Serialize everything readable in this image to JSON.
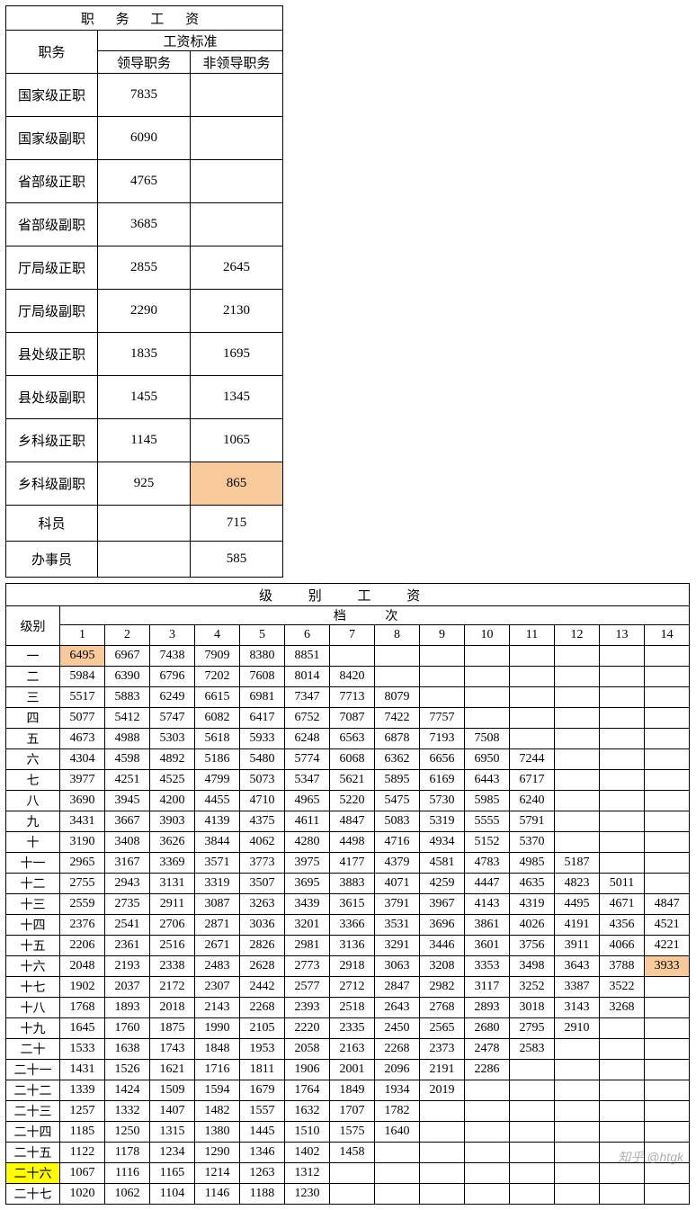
{
  "colors": {
    "highlight_orange": "#f7c99b",
    "highlight_yellow": "#ffff00",
    "border": "#000000",
    "background": "#ffffff"
  },
  "t1": {
    "title": "职 务 工 资",
    "col_position": "职务",
    "col_standard": "工资标准",
    "col_leader": "领导职务",
    "col_nonleader": "非领导职务",
    "rows": [
      {
        "pos": "国家级正职",
        "a": "7835",
        "b": ""
      },
      {
        "pos": "国家级副职",
        "a": "6090",
        "b": ""
      },
      {
        "pos": "省部级正职",
        "a": "4765",
        "b": ""
      },
      {
        "pos": "省部级副职",
        "a": "3685",
        "b": ""
      },
      {
        "pos": "厅局级正职",
        "a": "2855",
        "b": "2645"
      },
      {
        "pos": "厅局级副职",
        "a": "2290",
        "b": "2130"
      },
      {
        "pos": "县处级正职",
        "a": "1835",
        "b": "1695"
      },
      {
        "pos": "县处级副职",
        "a": "1455",
        "b": "1345"
      },
      {
        "pos": "乡科级正职",
        "a": "1145",
        "b": "1065"
      },
      {
        "pos": "乡科级副职",
        "a": "925",
        "b": "865",
        "hl_b": true
      },
      {
        "pos": "科员",
        "a": "",
        "b": "715",
        "short": true
      },
      {
        "pos": "办事员",
        "a": "",
        "b": "585",
        "short": true
      }
    ]
  },
  "t2": {
    "title": "级 别 工 资",
    "col_level": "级别",
    "col_steps": "档    次",
    "step_labels": [
      "1",
      "2",
      "3",
      "4",
      "5",
      "6",
      "7",
      "8",
      "9",
      "10",
      "11",
      "12",
      "13",
      "14"
    ],
    "highlights": {
      "row0_col0": true,
      "row15_col13": true,
      "row25_level": true
    },
    "rows": [
      {
        "lvl": "一",
        "v": [
          "6495",
          "6967",
          "7438",
          "7909",
          "8380",
          "8851",
          "",
          "",
          "",
          "",
          "",
          "",
          "",
          ""
        ]
      },
      {
        "lvl": "二",
        "v": [
          "5984",
          "6390",
          "6796",
          "7202",
          "7608",
          "8014",
          "8420",
          "",
          "",
          "",
          "",
          "",
          "",
          ""
        ]
      },
      {
        "lvl": "三",
        "v": [
          "5517",
          "5883",
          "6249",
          "6615",
          "6981",
          "7347",
          "7713",
          "8079",
          "",
          "",
          "",
          "",
          "",
          ""
        ]
      },
      {
        "lvl": "四",
        "v": [
          "5077",
          "5412",
          "5747",
          "6082",
          "6417",
          "6752",
          "7087",
          "7422",
          "7757",
          "",
          "",
          "",
          "",
          ""
        ]
      },
      {
        "lvl": "五",
        "v": [
          "4673",
          "4988",
          "5303",
          "5618",
          "5933",
          "6248",
          "6563",
          "6878",
          "7193",
          "7508",
          "",
          "",
          "",
          ""
        ]
      },
      {
        "lvl": "六",
        "v": [
          "4304",
          "4598",
          "4892",
          "5186",
          "5480",
          "5774",
          "6068",
          "6362",
          "6656",
          "6950",
          "7244",
          "",
          "",
          ""
        ]
      },
      {
        "lvl": "七",
        "v": [
          "3977",
          "4251",
          "4525",
          "4799",
          "5073",
          "5347",
          "5621",
          "5895",
          "6169",
          "6443",
          "6717",
          "",
          "",
          ""
        ]
      },
      {
        "lvl": "八",
        "v": [
          "3690",
          "3945",
          "4200",
          "4455",
          "4710",
          "4965",
          "5220",
          "5475",
          "5730",
          "5985",
          "6240",
          "",
          "",
          ""
        ]
      },
      {
        "lvl": "九",
        "v": [
          "3431",
          "3667",
          "3903",
          "4139",
          "4375",
          "4611",
          "4847",
          "5083",
          "5319",
          "5555",
          "5791",
          "",
          "",
          ""
        ]
      },
      {
        "lvl": "十",
        "v": [
          "3190",
          "3408",
          "3626",
          "3844",
          "4062",
          "4280",
          "4498",
          "4716",
          "4934",
          "5152",
          "5370",
          "",
          "",
          ""
        ]
      },
      {
        "lvl": "十一",
        "v": [
          "2965",
          "3167",
          "3369",
          "3571",
          "3773",
          "3975",
          "4177",
          "4379",
          "4581",
          "4783",
          "4985",
          "5187",
          "",
          ""
        ]
      },
      {
        "lvl": "十二",
        "v": [
          "2755",
          "2943",
          "3131",
          "3319",
          "3507",
          "3695",
          "3883",
          "4071",
          "4259",
          "4447",
          "4635",
          "4823",
          "5011",
          ""
        ]
      },
      {
        "lvl": "十三",
        "v": [
          "2559",
          "2735",
          "2911",
          "3087",
          "3263",
          "3439",
          "3615",
          "3791",
          "3967",
          "4143",
          "4319",
          "4495",
          "4671",
          "4847"
        ]
      },
      {
        "lvl": "十四",
        "v": [
          "2376",
          "2541",
          "2706",
          "2871",
          "3036",
          "3201",
          "3366",
          "3531",
          "3696",
          "3861",
          "4026",
          "4191",
          "4356",
          "4521"
        ]
      },
      {
        "lvl": "十五",
        "v": [
          "2206",
          "2361",
          "2516",
          "2671",
          "2826",
          "2981",
          "3136",
          "3291",
          "3446",
          "3601",
          "3756",
          "3911",
          "4066",
          "4221"
        ]
      },
      {
        "lvl": "十六",
        "v": [
          "2048",
          "2193",
          "2338",
          "2483",
          "2628",
          "2773",
          "2918",
          "3063",
          "3208",
          "3353",
          "3498",
          "3643",
          "3788",
          "3933"
        ]
      },
      {
        "lvl": "十七",
        "v": [
          "1902",
          "2037",
          "2172",
          "2307",
          "2442",
          "2577",
          "2712",
          "2847",
          "2982",
          "3117",
          "3252",
          "3387",
          "3522",
          ""
        ]
      },
      {
        "lvl": "十八",
        "v": [
          "1768",
          "1893",
          "2018",
          "2143",
          "2268",
          "2393",
          "2518",
          "2643",
          "2768",
          "2893",
          "3018",
          "3143",
          "3268",
          ""
        ]
      },
      {
        "lvl": "十九",
        "v": [
          "1645",
          "1760",
          "1875",
          "1990",
          "2105",
          "2220",
          "2335",
          "2450",
          "2565",
          "2680",
          "2795",
          "2910",
          "",
          ""
        ]
      },
      {
        "lvl": "二十",
        "v": [
          "1533",
          "1638",
          "1743",
          "1848",
          "1953",
          "2058",
          "2163",
          "2268",
          "2373",
          "2478",
          "2583",
          "",
          "",
          ""
        ]
      },
      {
        "lvl": "二十一",
        "v": [
          "1431",
          "1526",
          "1621",
          "1716",
          "1811",
          "1906",
          "2001",
          "2096",
          "2191",
          "2286",
          "",
          "",
          "",
          ""
        ]
      },
      {
        "lvl": "二十二",
        "v": [
          "1339",
          "1424",
          "1509",
          "1594",
          "1679",
          "1764",
          "1849",
          "1934",
          "2019",
          "",
          "",
          "",
          "",
          ""
        ]
      },
      {
        "lvl": "二十三",
        "v": [
          "1257",
          "1332",
          "1407",
          "1482",
          "1557",
          "1632",
          "1707",
          "1782",
          "",
          "",
          "",
          "",
          "",
          ""
        ]
      },
      {
        "lvl": "二十四",
        "v": [
          "1185",
          "1250",
          "1315",
          "1380",
          "1445",
          "1510",
          "1575",
          "1640",
          "",
          "",
          "",
          "",
          "",
          ""
        ]
      },
      {
        "lvl": "二十五",
        "v": [
          "1122",
          "1178",
          "1234",
          "1290",
          "1346",
          "1402",
          "1458",
          "",
          "",
          "",
          "",
          "",
          "",
          ""
        ]
      },
      {
        "lvl": "二十六",
        "v": [
          "1067",
          "1116",
          "1165",
          "1214",
          "1263",
          "1312",
          "",
          "",
          "",
          "",
          "",
          "",
          "",
          ""
        ]
      },
      {
        "lvl": "二十七",
        "v": [
          "1020",
          "1062",
          "1104",
          "1146",
          "1188",
          "1230",
          "",
          "",
          "",
          "",
          "",
          "",
          "",
          ""
        ]
      }
    ]
  },
  "watermark": "知乎 @htgk"
}
